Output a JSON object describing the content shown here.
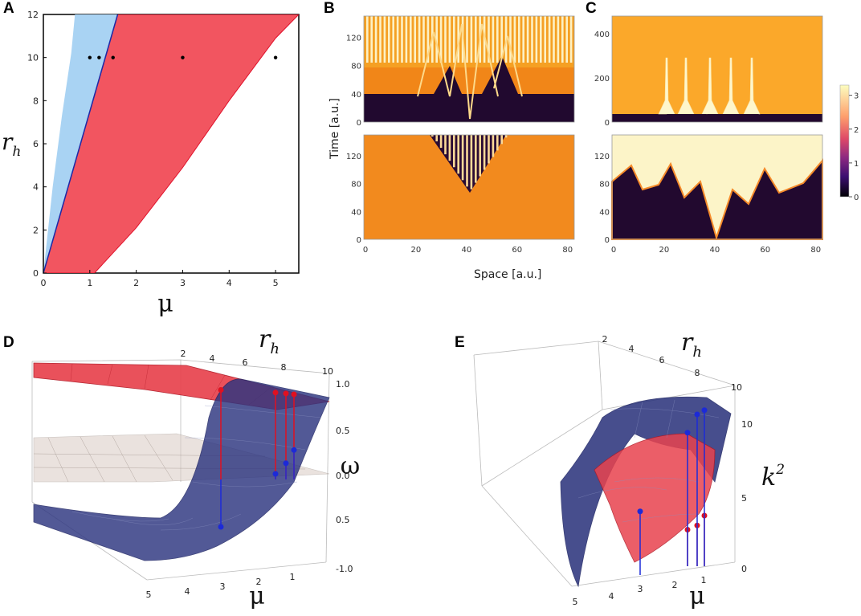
{
  "chart_data": [
    {
      "panel": "A",
      "type": "area",
      "xlabel": "μ",
      "ylabel_main": "r",
      "ylabel_sub": "h",
      "xlim": [
        0,
        5.5
      ],
      "ylim": [
        0,
        12
      ],
      "xticks": [
        "0",
        "1",
        "2",
        "3",
        "4",
        "5"
      ],
      "yticks": [
        "0",
        "2",
        "4",
        "6",
        "8",
        "10",
        "12"
      ],
      "regions": [
        {
          "name": "light-blue region",
          "color": "#a9d3f3",
          "left_boundary": [
            [
              0,
              0
            ],
            [
              0.2,
              4
            ],
            [
              0.4,
              7.3
            ],
            [
              0.6,
              10.2
            ],
            [
              0.68,
              12
            ]
          ],
          "right_boundary": [
            [
              0,
              0
            ],
            [
              1.6,
              12
            ]
          ]
        },
        {
          "name": "red region",
          "color": "#f25560",
          "left_boundary": [
            [
              0,
              0
            ],
            [
              1.6,
              12
            ]
          ],
          "right_boundary": [
            [
              1.1,
              0
            ],
            [
              2,
              2.1
            ],
            [
              3,
              4.9
            ],
            [
              4,
              8
            ],
            [
              5,
              10.9
            ],
            [
              5.5,
              12
            ]
          ]
        }
      ],
      "points": [
        [
          1,
          10
        ],
        [
          1.2,
          10
        ],
        [
          1.5,
          10
        ],
        [
          3,
          10
        ],
        [
          5,
          10
        ]
      ]
    },
    {
      "panel": "B",
      "type": "heatmap",
      "xlabel": "Space [a.u.]",
      "ylabel": "Time [a.u.]",
      "xticks": [
        "0",
        "20",
        "40",
        "60",
        "80"
      ],
      "yticks_top": [
        "0",
        "40",
        "80",
        "120"
      ],
      "yticks_bottom": [
        "0",
        "40",
        "80",
        "120"
      ]
    },
    {
      "panel": "C",
      "type": "heatmap",
      "xticks": [
        "0",
        "20",
        "40",
        "60",
        "80"
      ],
      "yticks_top": [
        "0",
        "200",
        "400"
      ],
      "yticks_bottom": [
        "0",
        "40",
        "80",
        "120"
      ],
      "colorbar": {
        "min": 0,
        "max": 3.3,
        "ticks": [
          "0",
          "1",
          "2",
          "3"
        ],
        "stops": [
          "#000004",
          "#3b0f70",
          "#8c2981",
          "#de4968",
          "#fe9f6d",
          "#fcfdbf"
        ]
      }
    },
    {
      "panel": "D",
      "type": "surface3d",
      "zlabel": "ω",
      "xlabel": "μ",
      "ylabel_main": "r",
      "ylabel_sub": "h",
      "mu_ticks": [
        "5",
        "4",
        "3",
        "2",
        "1"
      ],
      "rh_ticks": [
        "2",
        "4",
        "6",
        "8",
        "10"
      ],
      "z_ticks": [
        "1.0",
        "0.5",
        "0.0",
        "0.5",
        "-1.0"
      ],
      "markers": [
        {
          "mu": 3,
          "red_top": 0.95,
          "blue": -0.6
        },
        {
          "mu": 1.5,
          "red_top": 0.92,
          "blue": 0.0
        },
        {
          "mu": 1.2,
          "red_top": 0.91,
          "blue": 0.12
        },
        {
          "mu": 1.0,
          "red_top": 0.9,
          "blue": 0.27
        }
      ]
    },
    {
      "panel": "E",
      "type": "surface3d",
      "zlabel": "k",
      "zlabel_sup": "2",
      "xlabel": "μ",
      "ylabel_main": "r",
      "ylabel_sub": "h",
      "mu_ticks": [
        "5",
        "4",
        "3",
        "2",
        "1"
      ],
      "rh_ticks": [
        "2",
        "4",
        "6",
        "8",
        "10"
      ],
      "z_ticks": [
        "10",
        "5",
        "0"
      ],
      "markers": [
        {
          "mu": 3,
          "blue": 3.9
        },
        {
          "mu": 1.5,
          "blue": 9.5,
          "red": 2.6
        },
        {
          "mu": 1.2,
          "blue": 10.8,
          "red": 2.9
        },
        {
          "mu": 1.0,
          "blue": 11.1,
          "red": 3.6
        }
      ]
    }
  ],
  "labels": {
    "A": "A",
    "B": "B",
    "C": "C",
    "D": "D",
    "E": "E"
  }
}
